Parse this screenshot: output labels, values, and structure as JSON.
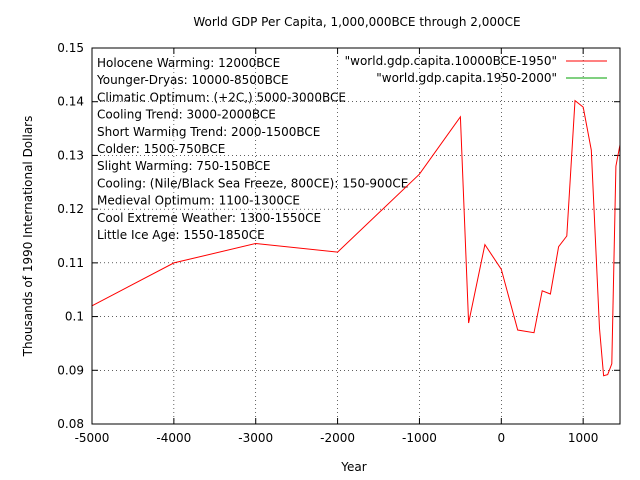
{
  "chart_data": {
    "type": "line",
    "title": "World GDP Per Capita, 1,000,000BCE through 2,000CE",
    "xlabel": "Year",
    "ylabel": "Thousands of 1990 International Dollars",
    "xlim": [
      -5000,
      1450
    ],
    "ylim": [
      0.08,
      0.15
    ],
    "x_ticks": [
      -5000,
      -4000,
      -3000,
      -2000,
      -1000,
      0,
      1000
    ],
    "x_tick_labels": [
      "-5000",
      "-4000",
      "-3000",
      "-2000",
      "-1000",
      "0",
      "1000"
    ],
    "y_ticks": [
      0.08,
      0.09,
      0.1,
      0.11,
      0.12,
      0.13,
      0.14,
      0.15
    ],
    "y_tick_labels": [
      "0.08",
      "0.09",
      "0.1",
      "0.11",
      "0.12",
      "0.13",
      "0.14",
      "0.15"
    ],
    "grid": true,
    "legend_position": "top-right",
    "annotations": [
      "Holocene Warming: 12000BCE",
      "Younger-Dryas: 10000-8500BCE",
      "Climatic Optimum: (+2C,) 5000-3000BCE",
      "Cooling Trend: 3000-2000BCE",
      "Short Warming Trend: 2000-1500BCE",
      "Colder: 1500-750BCE",
      "Slight Warming: 750-150BCE",
      "Cooling: (Nile/Black Sea Freeze, 800CE): 150-900CE",
      "Medieval Optimum: 1100-1300CE",
      "Cool Extreme Weather: 1300-1550CE",
      "Little Ice Age: 1550-1850CE"
    ],
    "series": [
      {
        "name": "\"world.gdp.capita.10000BCE-1950\"",
        "color": "#ff0000",
        "x": [
          -5000,
          -4000,
          -3000,
          -2000,
          -1000,
          -500,
          -400,
          -200,
          0,
          200,
          400,
          500,
          600,
          700,
          800,
          900,
          1000,
          1100,
          1200,
          1250,
          1300,
          1350,
          1400,
          1450
        ],
        "y": [
          0.102,
          0.11,
          0.1136,
          0.112,
          0.1265,
          0.1372,
          0.0988,
          0.1134,
          0.1088,
          0.0975,
          0.097,
          0.1048,
          0.1042,
          0.113,
          0.115,
          0.1402,
          0.139,
          0.131,
          0.0978,
          0.089,
          0.0892,
          0.0912,
          0.128,
          0.132
        ]
      },
      {
        "name": "\"world.gdp.capita.1950-2000\"",
        "color": "#00a000",
        "x": [],
        "y": []
      }
    ]
  }
}
